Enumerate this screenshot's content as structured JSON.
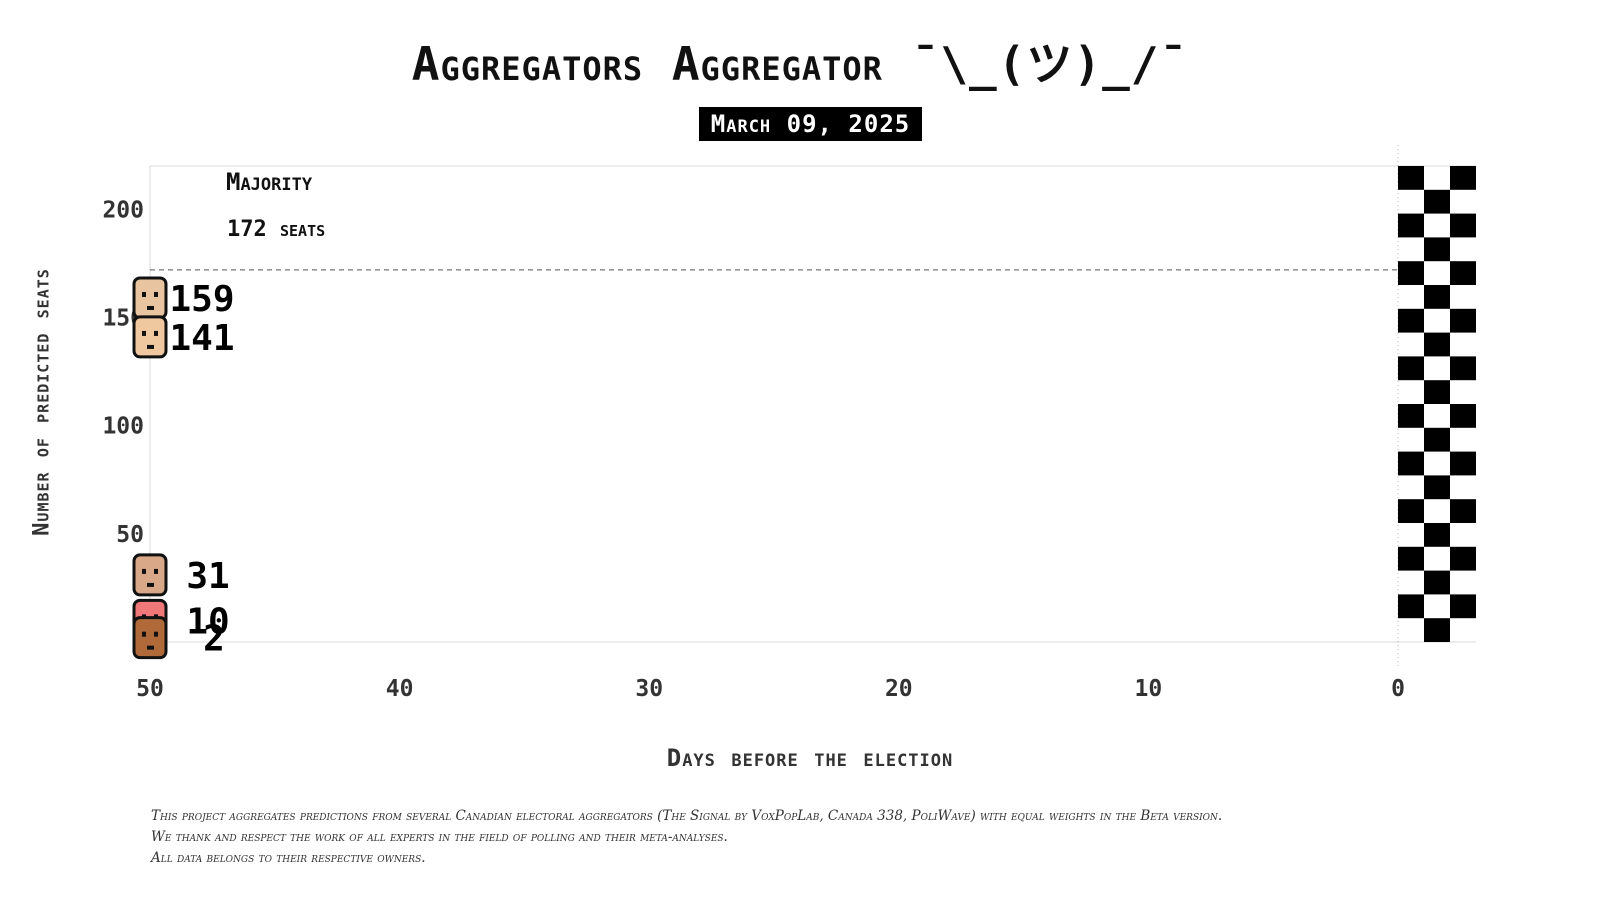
{
  "title": "Aggregators Aggregator ¯\\_(ツ)_/¯",
  "date": "March 09, 2025",
  "chart_data": {
    "type": "scatter",
    "title": "Aggregators Aggregator ¯\\_(ツ)_/¯",
    "subtitle": "March 09, 2025",
    "xlabel": "Days before the election",
    "ylabel": "Number of predicted seats",
    "xlim": [
      50,
      0
    ],
    "ylim": [
      0,
      220
    ],
    "x_ticks": [
      50,
      40,
      30,
      20,
      10,
      0
    ],
    "y_ticks": [
      50,
      100,
      150,
      200
    ],
    "majority": {
      "value": 172,
      "label": "Majority",
      "sublabel": "172 seats"
    },
    "finish_line": {
      "x": 0,
      "style": "checkered"
    },
    "series": [
      {
        "points": [
          {
            "x": 50,
            "y": 159
          }
        ],
        "label": "159",
        "color": "#e8c4a0"
      },
      {
        "points": [
          {
            "x": 50,
            "y": 141
          }
        ],
        "label": "141",
        "color": "#f0c8a0"
      },
      {
        "points": [
          {
            "x": 50,
            "y": 31
          }
        ],
        "label": "31",
        "color": "#d8a888"
      },
      {
        "points": [
          {
            "x": 50,
            "y": 10
          }
        ],
        "label": "10",
        "color": "#f07878"
      },
      {
        "points": [
          {
            "x": 50,
            "y": 2
          }
        ],
        "label": "2",
        "color": "#b06a3a"
      }
    ]
  },
  "footnote": [
    "This project aggregates predictions from several Canadian electoral aggregators (The Signal by VoxPopLab, Canada 338, PoliWave) with equal weights in the Beta version.",
    "We thank and respect the work of all experts in the field of polling and their meta-analyses.",
    "All data belongs to their respective owners."
  ]
}
